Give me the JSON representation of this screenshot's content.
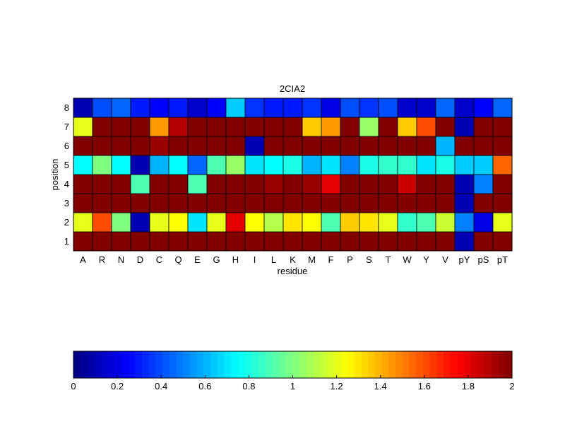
{
  "chart_data": {
    "type": "heatmap",
    "title": "2CIA2",
    "xlabel": "residue",
    "ylabel": "position",
    "x_categories": [
      "A",
      "R",
      "N",
      "D",
      "C",
      "Q",
      "E",
      "G",
      "H",
      "I",
      "L",
      "K",
      "M",
      "F",
      "P",
      "S",
      "T",
      "W",
      "Y",
      "V",
      "pY",
      "pS",
      "pT"
    ],
    "y_categories": [
      "1",
      "2",
      "3",
      "4",
      "5",
      "6",
      "7",
      "8"
    ],
    "values": [
      [
        2,
        2,
        2,
        2,
        2,
        2,
        2,
        2,
        2,
        2,
        2,
        2,
        2,
        2,
        2,
        2,
        2,
        2,
        2,
        2,
        0.1,
        2,
        2
      ],
      [
        1.2,
        1.6,
        1.0,
        0.1,
        1.2,
        1.25,
        0.7,
        1.2,
        1.8,
        1.25,
        1.1,
        1.3,
        1.25,
        0.9,
        1.35,
        1.3,
        1.2,
        0.85,
        0.9,
        1.15,
        0.5,
        0.2,
        1.2
      ],
      [
        2,
        2,
        2,
        2,
        2,
        2,
        2,
        2,
        2,
        2,
        2,
        2,
        2,
        2,
        2,
        2,
        2,
        2,
        2,
        2,
        0.1,
        2,
        2
      ],
      [
        2,
        2,
        2,
        0.9,
        2,
        2,
        0.9,
        2,
        2,
        2,
        1.95,
        2,
        1.95,
        1.8,
        2,
        2,
        2,
        1.85,
        2,
        2,
        0.1,
        0.5,
        2
      ],
      [
        0.75,
        1.0,
        0.75,
        0.1,
        0.6,
        0.75,
        0.45,
        0.9,
        1.05,
        0.7,
        0.75,
        0.8,
        0.6,
        0.7,
        0.5,
        0.8,
        0.85,
        0.85,
        0.7,
        0.8,
        0.65,
        0.65,
        1.55
      ],
      [
        2,
        2,
        2,
        2,
        1.95,
        2,
        2,
        2,
        2,
        0.1,
        2,
        2,
        2,
        2,
        2,
        2,
        2,
        2,
        2,
        0.6,
        2,
        2,
        2
      ],
      [
        1.2,
        2,
        2,
        2,
        1.45,
        1.9,
        2,
        2,
        2,
        2,
        2,
        2,
        1.35,
        1.45,
        2,
        1.05,
        2,
        1.35,
        1.6,
        2,
        0.1,
        2,
        2
      ],
      [
        0.1,
        0.4,
        0.45,
        0.3,
        0.25,
        0.3,
        0.15,
        0.25,
        0.65,
        0.35,
        0.3,
        0.3,
        0.35,
        0.2,
        0.4,
        0.35,
        0.4,
        0.15,
        0.15,
        0.45,
        0.15,
        0.25,
        0.45
      ]
    ],
    "colormap": "jet",
    "colorbar": {
      "range": [
        0,
        2
      ],
      "ticks": [
        "0",
        "0.2",
        "0.4",
        "0.6",
        "0.8",
        "1",
        "1.2",
        "1.4",
        "1.6",
        "1.8",
        "2"
      ]
    },
    "grid": false
  }
}
